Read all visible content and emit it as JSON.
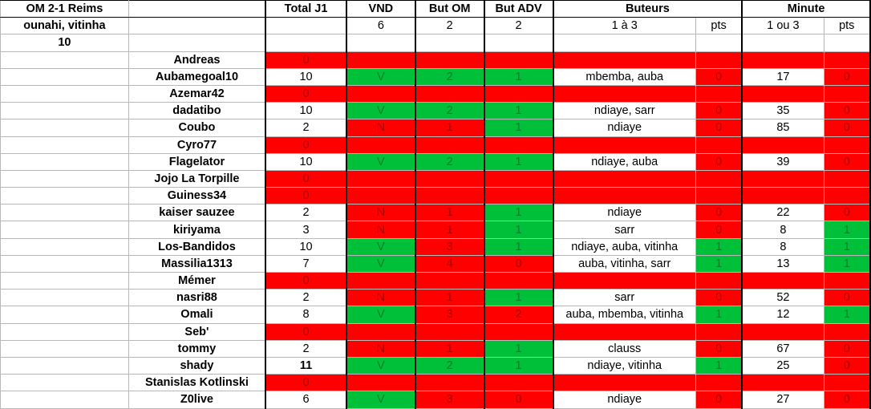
{
  "header": {
    "match": "OM 2-1 Reims",
    "scorers": "ounahi, vitinha",
    "minute": "10",
    "columns": {
      "total": "Total J1",
      "vnd": "VND",
      "but_om": "But OM",
      "but_adv": "But ADV",
      "buteurs": "Buteurs",
      "minute": "Minute"
    },
    "sub": {
      "vnd": "6",
      "but_om": "2",
      "but_adv": "2",
      "buteurs": "1 à 3",
      "pts1": "pts",
      "minute": "1 ou 3",
      "pts2": "pts"
    }
  },
  "colors": {
    "red": "#ff0000",
    "green": "#00c03a",
    "white": "#ffffff"
  },
  "rows": [
    {
      "name": "Andreas",
      "total": "0"
    },
    {
      "name": "Aubamegoal10",
      "total": "10",
      "vnd": "V",
      "om": "2",
      "adv": "1",
      "buteurs": "mbemba, auba",
      "p1": "0",
      "minute": "17",
      "p2": "0"
    },
    {
      "name": "Azemar42",
      "total": "0"
    },
    {
      "name": "dadatibo",
      "total": "10",
      "vnd": "V",
      "om": "2",
      "adv": "1",
      "buteurs": "ndiaye, sarr",
      "p1": "0",
      "minute": "35",
      "p2": "0"
    },
    {
      "name": "Coubo",
      "total": "2",
      "vnd": "N",
      "om": "1",
      "adv": "1",
      "buteurs": "ndiaye",
      "p1": "0",
      "minute": "85",
      "p2": "0"
    },
    {
      "name": "Cyro77",
      "total": "0"
    },
    {
      "name": "Flagelator",
      "total": "10",
      "vnd": "V",
      "om": "2",
      "adv": "1",
      "buteurs": "ndiaye, auba",
      "p1": "0",
      "minute": "39",
      "p2": "0"
    },
    {
      "name": "Jojo La Torpille",
      "total": "0"
    },
    {
      "name": "Guiness34",
      "total": "0"
    },
    {
      "name": "kaiser sauzee",
      "total": "2",
      "vnd": "N",
      "om": "1",
      "adv": "1",
      "buteurs": "ndiaye",
      "p1": "0",
      "minute": "22",
      "p2": "0"
    },
    {
      "name": "kiriyama",
      "total": "3",
      "vnd": "N",
      "om": "1",
      "adv": "1",
      "buteurs": "sarr",
      "p1": "0",
      "minute": "8",
      "p2": "1"
    },
    {
      "name": "Los-Bandidos",
      "total": "10",
      "vnd": "V",
      "om": "3",
      "adv": "1",
      "buteurs": "ndiaye, auba, vitinha",
      "p1": "1",
      "minute": "8",
      "p2": "1"
    },
    {
      "name": "Massilia1313",
      "total": "7",
      "vnd": "V",
      "om": "4",
      "adv": "0",
      "buteurs": "auba, vitinha, sarr",
      "p1": "1",
      "minute": "13",
      "p2": "1"
    },
    {
      "name": "Mémer",
      "total": "0"
    },
    {
      "name": "nasri88",
      "total": "2",
      "vnd": "N",
      "om": "1",
      "adv": "1",
      "buteurs": "sarr",
      "p1": "0",
      "minute": "52",
      "p2": "0"
    },
    {
      "name": "Omali",
      "total": "8",
      "vnd": "V",
      "om": "3",
      "adv": "2",
      "buteurs": "auba, mbemba, vitinha",
      "p1": "1",
      "minute": "12",
      "p2": "1"
    },
    {
      "name": "Seb'",
      "total": "0"
    },
    {
      "name": "tommy",
      "total": "2",
      "vnd": "N",
      "om": "1",
      "adv": "1",
      "buteurs": "clauss",
      "p1": "0",
      "minute": "67",
      "p2": "0"
    },
    {
      "name": "shady",
      "total": "11",
      "total_bold": true,
      "vnd": "V",
      "om": "2",
      "adv": "1",
      "buteurs": "ndiaye, vitinha",
      "p1": "1",
      "minute": "25",
      "p2": "0"
    },
    {
      "name": "Stanislas Kotlinski",
      "total": "0"
    },
    {
      "name": "Z0live",
      "total": "6",
      "vnd": "V",
      "om": "3",
      "adv": "0",
      "buteurs": "ndiaye",
      "p1": "0",
      "minute": "27",
      "p2": "0"
    }
  ]
}
